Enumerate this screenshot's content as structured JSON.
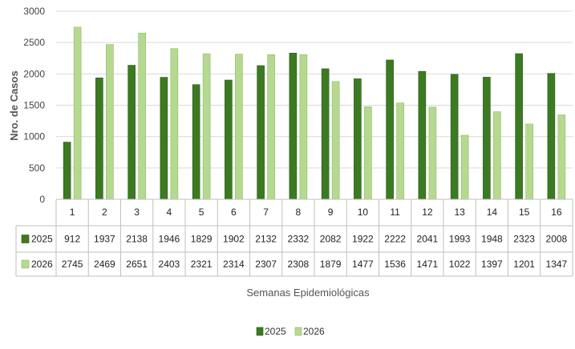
{
  "chart_data": {
    "type": "bar",
    "categories": [
      "1",
      "2",
      "3",
      "4",
      "5",
      "6",
      "7",
      "8",
      "9",
      "10",
      "11",
      "12",
      "13",
      "14",
      "15",
      "16"
    ],
    "series": [
      {
        "name": "2025",
        "color": "#3c7a22",
        "values": [
          912,
          1937,
          2138,
          1946,
          1829,
          1902,
          2132,
          2332,
          2082,
          1922,
          2222,
          2041,
          1993,
          1948,
          2323,
          2008
        ]
      },
      {
        "name": "2026",
        "color": "#b5d98f",
        "values": [
          2745,
          2469,
          2651,
          2403,
          2321,
          2314,
          2307,
          2308,
          1879,
          1477,
          1536,
          1471,
          1022,
          1397,
          1201,
          1347
        ]
      }
    ],
    "xlabel": "Semanas Epidemiológicas",
    "ylabel": "Nro. de Casos",
    "ylim": [
      0,
      3000
    ],
    "yticks": [
      0,
      500,
      1000,
      1500,
      2000,
      2500,
      3000
    ],
    "grid": true,
    "data_table": true,
    "legend_position": "bottom"
  }
}
